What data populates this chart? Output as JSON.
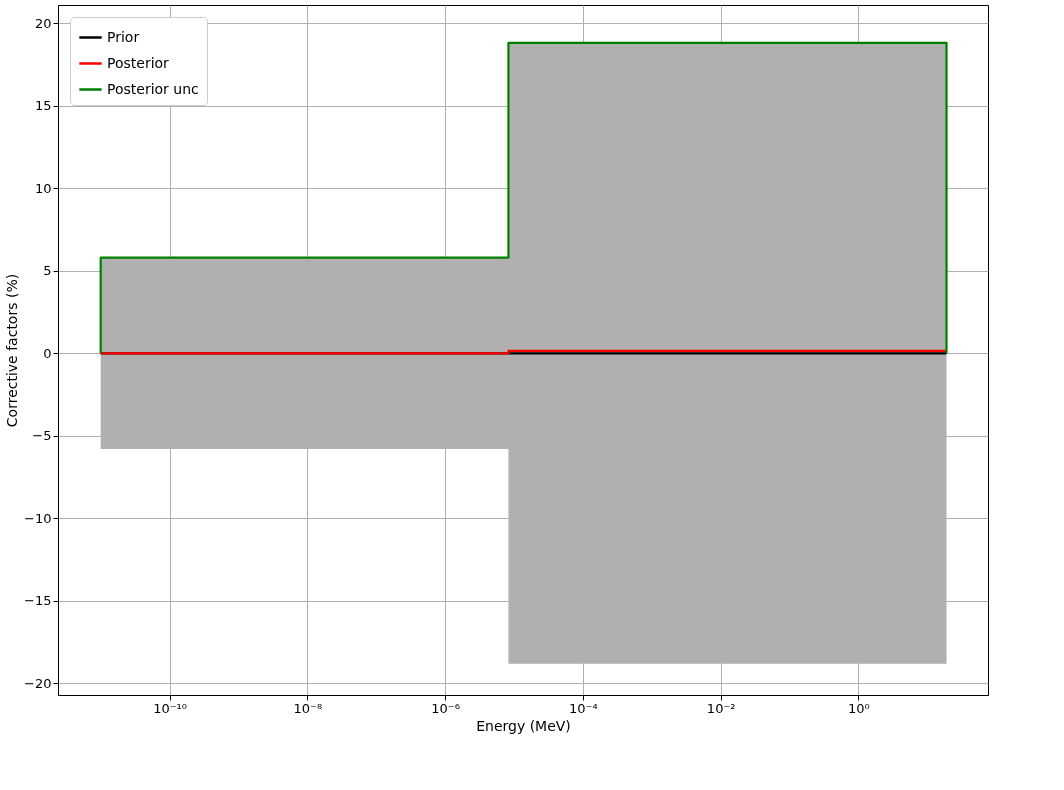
{
  "chart_data": {
    "type": "step",
    "xlabel": "Energy (MeV)",
    "ylabel": "Corrective factors (%)",
    "log": "x",
    "grid": true,
    "legend": "top left",
    "line_style": "solid",
    "marker": "none",
    "xlim": [
      2.4e-12,
      76
    ],
    "ylim": [
      -20.7,
      21.1
    ],
    "xticks": [
      {
        "value": 1e-10,
        "label": "10⁻¹⁰"
      },
      {
        "value": 1e-08,
        "label": "10⁻⁸"
      },
      {
        "value": 1e-06,
        "label": "10⁻⁶"
      },
      {
        "value": 0.0001,
        "label": "10⁻⁴"
      },
      {
        "value": 0.01,
        "label": "10⁻²"
      },
      {
        "value": 1,
        "label": "10⁰"
      }
    ],
    "yticks": [
      {
        "value": -20,
        "label": "−20"
      },
      {
        "value": -15,
        "label": "−15"
      },
      {
        "value": -10,
        "label": "−10"
      },
      {
        "value": -5,
        "label": "−5"
      },
      0,
      5,
      10,
      15,
      20
    ],
    "series": [
      {
        "name": "Prior",
        "color": "#000000",
        "x": [
          1e-11,
          8.3e-06,
          19
        ],
        "values": [
          0,
          0,
          0
        ]
      },
      {
        "name": "Posterior",
        "color": "#ff0000",
        "x": [
          1e-11,
          8.3e-06,
          19
        ],
        "values": [
          0,
          0.15,
          0.15
        ]
      },
      {
        "name": "Posterior unc",
        "color": "#008000",
        "x": [
          1e-11,
          1e-11,
          8.3e-06,
          19,
          19
        ],
        "values": [
          0,
          5.8,
          18.8,
          18.8,
          0
        ],
        "lower": [
          null,
          -5.8,
          -18.8,
          -18.8,
          null
        ],
        "upper": [
          null,
          5.8,
          18.8,
          18.8,
          null
        ]
      }
    ]
  }
}
